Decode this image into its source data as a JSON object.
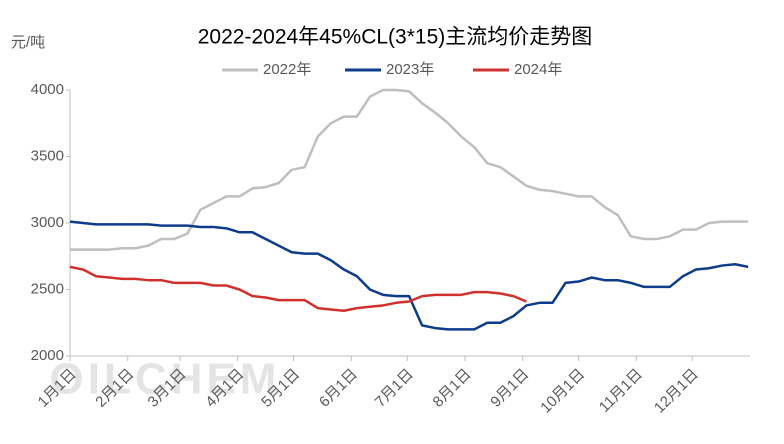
{
  "chart_data": {
    "type": "line",
    "title": "2022-2024年45%CL(3*15)主流均价走势图",
    "y_label": "元/吨",
    "watermark": "OILCHEM",
    "x": [
      0,
      7,
      14,
      21,
      28,
      35,
      42,
      49,
      56,
      63,
      70,
      77,
      84,
      91,
      98,
      105,
      112,
      119,
      126,
      133,
      140,
      147,
      154,
      161,
      168,
      175,
      182,
      189,
      196,
      203,
      210,
      217,
      224,
      231,
      238,
      245,
      252,
      259,
      266,
      273,
      280,
      287,
      294,
      301,
      308,
      315,
      322,
      329,
      336,
      343,
      350,
      357,
      364
    ],
    "xlim": [
      0,
      365
    ],
    "xticks": [
      {
        "value": 0,
        "label": "1月1日"
      },
      {
        "value": 31,
        "label": "2月1日"
      },
      {
        "value": 59,
        "label": "3月1日"
      },
      {
        "value": 90,
        "label": "4月1日"
      },
      {
        "value": 120,
        "label": "5月1日"
      },
      {
        "value": 151,
        "label": "6月1日"
      },
      {
        "value": 181,
        "label": "7月1日"
      },
      {
        "value": 212,
        "label": "8月1日"
      },
      {
        "value": 243,
        "label": "9月1日"
      },
      {
        "value": 273,
        "label": "10月1日"
      },
      {
        "value": 304,
        "label": "11月1日"
      },
      {
        "value": 334,
        "label": "12月1日"
      }
    ],
    "ylim": [
      2000,
      4000
    ],
    "yticks": [
      2000,
      2500,
      3000,
      3500,
      4000
    ],
    "legend": "top",
    "series": [
      {
        "name": "2022年",
        "color": "#bfbfbf",
        "values": [
          2800,
          2800,
          2800,
          2800,
          2810,
          2810,
          2830,
          2880,
          2880,
          2920,
          3100,
          3150,
          3200,
          3200,
          3260,
          3270,
          3300,
          3400,
          3420,
          3650,
          3750,
          3800,
          3800,
          3950,
          4000,
          4000,
          3990,
          3900,
          3830,
          3750,
          3650,
          3570,
          3450,
          3420,
          3350,
          3280,
          3250,
          3240,
          3220,
          3200,
          3200,
          3120,
          3060,
          2900,
          2880,
          2880,
          2900,
          2950,
          2950,
          3000,
          3010,
          3010,
          3010
        ]
      },
      {
        "name": "2023年",
        "color": "#0d3c8c",
        "values": [
          3010,
          3000,
          2990,
          2990,
          2990,
          2990,
          2990,
          2980,
          2980,
          2980,
          2970,
          2970,
          2960,
          2930,
          2930,
          2880,
          2830,
          2780,
          2770,
          2770,
          2720,
          2650,
          2600,
          2500,
          2460,
          2450,
          2450,
          2230,
          2210,
          2200,
          2200,
          2200,
          2250,
          2250,
          2300,
          2380,
          2400,
          2400,
          2550,
          2560,
          2590,
          2570,
          2570,
          2550,
          2520,
          2520,
          2520,
          2600,
          2650,
          2660,
          2680,
          2690,
          2670
        ]
      },
      {
        "name": "2024年",
        "color": "#d0312d",
        "values": [
          2670,
          2650,
          2600,
          2590,
          2580,
          2580,
          2570,
          2570,
          2550,
          2550,
          2550,
          2530,
          2530,
          2500,
          2450,
          2440,
          2420,
          2420,
          2420,
          2360,
          2350,
          2340,
          2360,
          2370,
          2380,
          2400,
          2410,
          2450,
          2460,
          2460,
          2460,
          2480,
          2480,
          2470,
          2450,
          2410,
          null,
          null,
          null,
          null,
          null,
          null,
          null,
          null,
          null,
          null,
          null,
          null,
          null,
          null,
          null,
          null,
          null
        ]
      }
    ]
  }
}
